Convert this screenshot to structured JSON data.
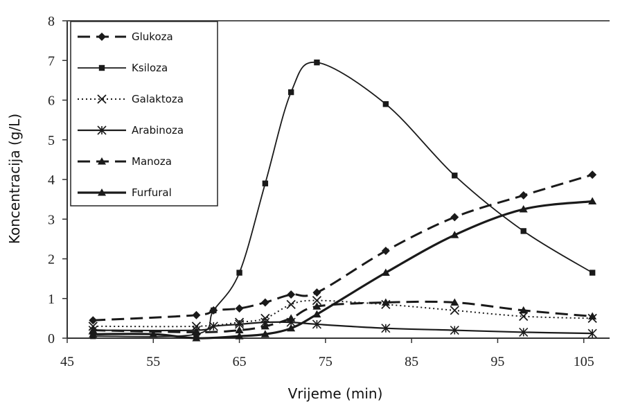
{
  "chart_data": {
    "type": "line",
    "title": "",
    "xlabel": "Vrijeme (min)",
    "ylabel": "Koncentracija (g/L)",
    "xlim": [
      45,
      108
    ],
    "ylim": [
      0,
      8
    ],
    "xticks": [
      45,
      55,
      65,
      75,
      85,
      95,
      105
    ],
    "yticks": [
      0,
      1,
      2,
      3,
      4,
      5,
      6,
      7,
      8
    ],
    "grid": false,
    "legend_position": "top-left",
    "series": [
      {
        "name": "Glukoza",
        "line_style": "dashed",
        "marker": "diamond",
        "color": "#1a1a1a",
        "points": [
          [
            48,
            0.45
          ],
          [
            60,
            0.58
          ],
          [
            62,
            0.7
          ],
          [
            65,
            0.75
          ],
          [
            68,
            0.9
          ],
          [
            71,
            1.1
          ],
          [
            74,
            1.15
          ],
          [
            82,
            2.2
          ],
          [
            90,
            3.05
          ],
          [
            98,
            3.6
          ],
          [
            106,
            4.12
          ]
        ]
      },
      {
        "name": "Ksiloza",
        "line_style": "solid-thin",
        "marker": "square",
        "color": "#1a1a1a",
        "points": [
          [
            48,
            0.05
          ],
          [
            60,
            0.1
          ],
          [
            62,
            0.7
          ],
          [
            65,
            1.65
          ],
          [
            68,
            3.9
          ],
          [
            71,
            6.2
          ],
          [
            74,
            6.95
          ],
          [
            82,
            5.9
          ],
          [
            90,
            4.1
          ],
          [
            98,
            2.7
          ],
          [
            106,
            1.65
          ]
        ]
      },
      {
        "name": "Galaktoza",
        "line_style": "dotted",
        "marker": "x",
        "color": "#1a1a1a",
        "points": [
          [
            48,
            0.3
          ],
          [
            60,
            0.3
          ],
          [
            65,
            0.4
          ],
          [
            68,
            0.5
          ],
          [
            71,
            0.85
          ],
          [
            74,
            0.95
          ],
          [
            82,
            0.85
          ],
          [
            90,
            0.7
          ],
          [
            98,
            0.55
          ],
          [
            106,
            0.5
          ]
        ]
      },
      {
        "name": "Arabinoza",
        "line_style": "solid",
        "marker": "asterisk",
        "color": "#1a1a1a",
        "points": [
          [
            48,
            0.2
          ],
          [
            60,
            0.2
          ],
          [
            62,
            0.3
          ],
          [
            65,
            0.35
          ],
          [
            68,
            0.4
          ],
          [
            71,
            0.4
          ],
          [
            74,
            0.35
          ],
          [
            82,
            0.25
          ],
          [
            90,
            0.2
          ],
          [
            98,
            0.15
          ],
          [
            106,
            0.12
          ]
        ]
      },
      {
        "name": "Manoza",
        "line_style": "dashed",
        "marker": "triangle",
        "color": "#1a1a1a",
        "points": [
          [
            48,
            0.2
          ],
          [
            60,
            0.15
          ],
          [
            65,
            0.2
          ],
          [
            68,
            0.3
          ],
          [
            71,
            0.5
          ],
          [
            74,
            0.8
          ],
          [
            82,
            0.9
          ],
          [
            90,
            0.9
          ],
          [
            98,
            0.7
          ],
          [
            106,
            0.55
          ]
        ]
      },
      {
        "name": "Furfural",
        "line_style": "solid-thick",
        "marker": "triangle",
        "color": "#1a1a1a",
        "points": [
          [
            48,
            0.1
          ],
          [
            55,
            0.1
          ],
          [
            60,
            0.0
          ],
          [
            65,
            0.05
          ],
          [
            68,
            0.1
          ],
          [
            71,
            0.25
          ],
          [
            74,
            0.6
          ],
          [
            82,
            1.65
          ],
          [
            90,
            2.6
          ],
          [
            98,
            3.25
          ],
          [
            106,
            3.45
          ]
        ]
      }
    ]
  }
}
